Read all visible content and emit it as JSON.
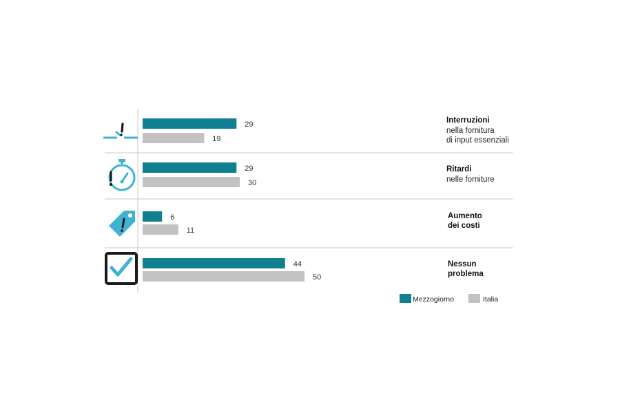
{
  "colors": {
    "mezzogiorno": "#0F7F91",
    "italia": "#C3C1C1",
    "icon_blue": "#3FB3D3",
    "icon_dark": "#1A1A1A",
    "divider": "#C8C8C8"
  },
  "chart_data": {
    "type": "bar",
    "orientation": "horizontal",
    "categories": [
      {
        "title": "Interruzioni",
        "subtitle": [
          "nella fornitura",
          "di input essenziali"
        ],
        "icon": "broken-supply-line-icon"
      },
      {
        "title": "Ritardi",
        "subtitle": [
          "nelle forniture"
        ],
        "icon": "stopwatch-icon"
      },
      {
        "title": "Aumento",
        "subtitle": [
          "dei costi"
        ],
        "icon": "price-tag-icon"
      },
      {
        "title": "Nessun",
        "subtitle": [
          "problema"
        ],
        "icon": "checkbox-check-icon"
      }
    ],
    "series": [
      {
        "name": "Mezzogiorno",
        "values": [
          29,
          29,
          6,
          44
        ]
      },
      {
        "name": "Italia",
        "values": [
          19,
          30,
          11,
          50
        ]
      }
    ],
    "xlim": [
      0,
      50
    ],
    "legend_position": "bottom-right",
    "grid": false
  },
  "legend": {
    "items": [
      {
        "label": "Mezzogiorno",
        "color": "#0F7F91"
      },
      {
        "label": "Italia",
        "color": "#C3C1C1"
      }
    ]
  }
}
